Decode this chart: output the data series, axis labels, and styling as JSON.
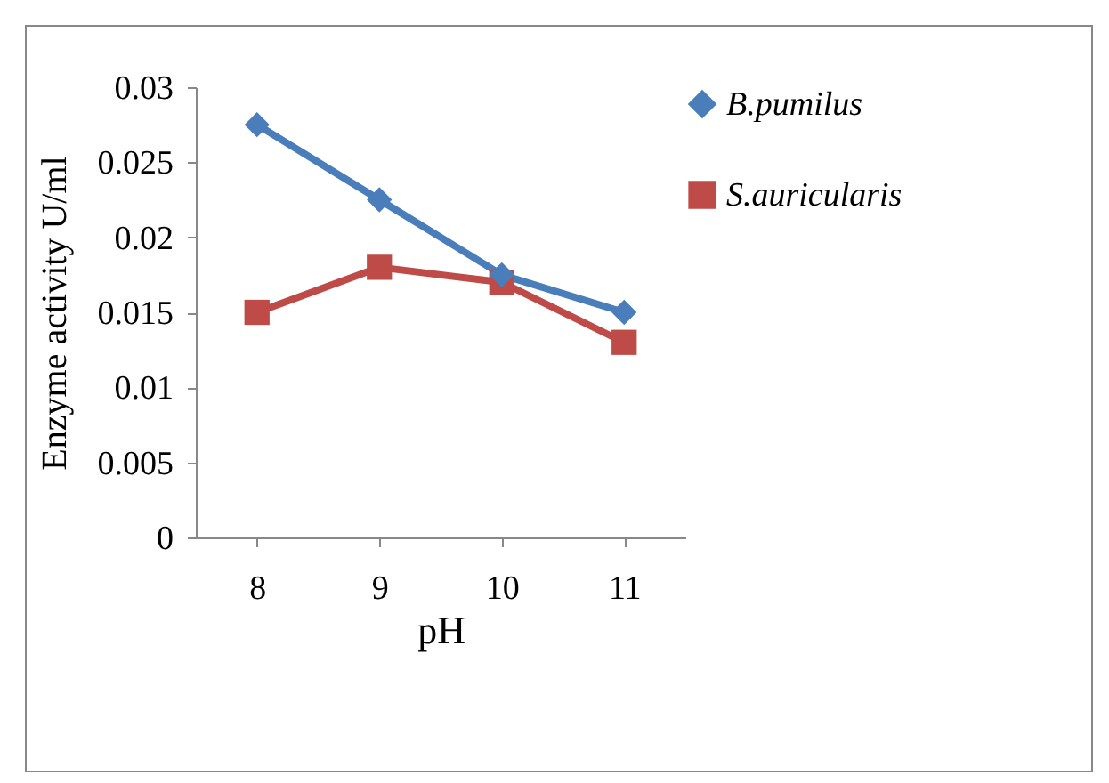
{
  "chart_data": {
    "type": "line",
    "xlabel": "pH",
    "ylabel": "Enzyme activity  U/ml",
    "categories": [
      "8",
      "9",
      "10",
      "11"
    ],
    "series": [
      {
        "name": "B.pumilus",
        "color": "#4a7ebb",
        "marker": "diamond",
        "values": [
          0.0275,
          0.0225,
          0.0175,
          0.015
        ]
      },
      {
        "name": "S.auricularis",
        "color": "#be4b48",
        "marker": "square",
        "values": [
          0.015,
          0.018,
          0.017,
          0.013
        ]
      }
    ],
    "ylim": [
      0,
      0.03
    ],
    "yticks": [
      0,
      0.005,
      0.01,
      0.015,
      0.02,
      0.025,
      0.03
    ],
    "grid": false,
    "legend": "right"
  }
}
